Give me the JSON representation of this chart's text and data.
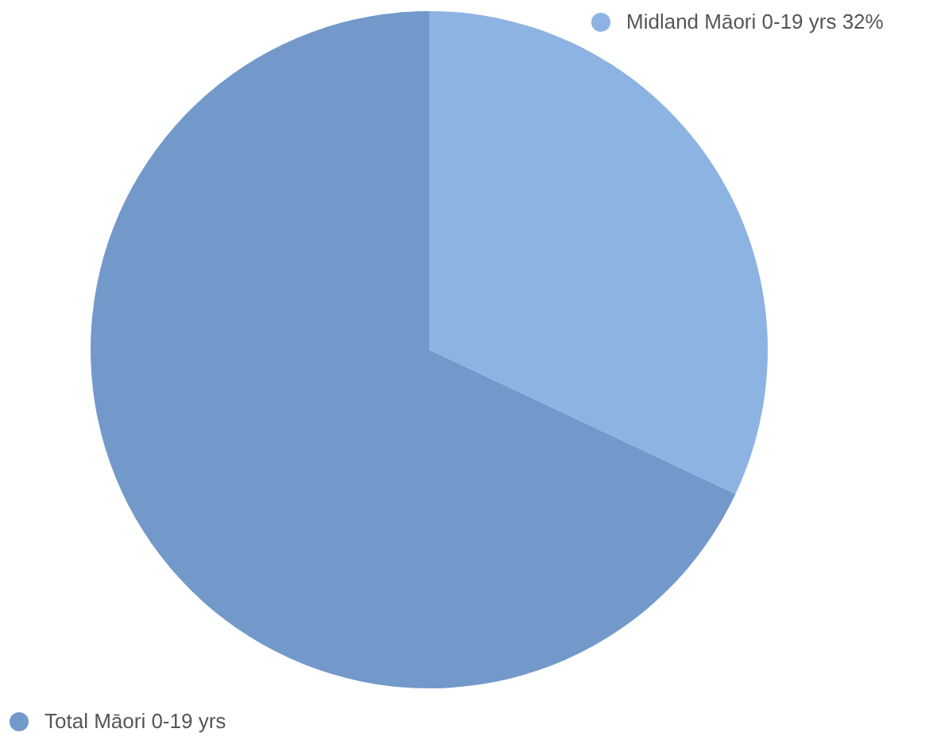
{
  "chart_data": {
    "type": "pie",
    "categories": [
      "Midland Māori 0-19 yrs",
      "Total Māori 0-19 yrs"
    ],
    "values": [
      32,
      68
    ],
    "colors": [
      "#8db3e2",
      "#7399cb"
    ],
    "value_labels": [
      "32%",
      null
    ],
    "legend": "bottom left"
  }
}
